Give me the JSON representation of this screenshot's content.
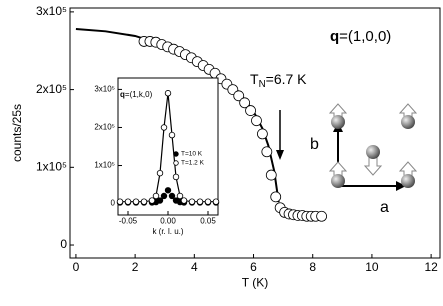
{
  "chart_data": [
    {
      "type": "scatter",
      "x_label": "T (K)",
      "y_label": "counts/25s",
      "annotations": [
        {
          "main": "T",
          "sub": "N",
          "tail": "=6.7 K"
        },
        {
          "main": "q",
          "tail": "=(1,0,0)"
        },
        {
          "main": "b"
        },
        {
          "main": "a"
        }
      ],
      "xlim": [
        -0.2,
        12.3
      ],
      "ylim": [
        -16700,
        305000
      ],
      "xticks": [
        0,
        2,
        4,
        6,
        8,
        10,
        12
      ],
      "yticks": [
        0,
        {
          "value": 100000,
          "label": "1x10⁵"
        },
        {
          "value": 200000,
          "label": "2x10⁵"
        },
        {
          "value": 300000,
          "label": "3x10⁵"
        }
      ],
      "series": [
        {
          "style": "line",
          "color": "#000000",
          "x": [
            0,
            1,
            2,
            3,
            4,
            5,
            5.5,
            6,
            6.3,
            6.5,
            6.7,
            6.85
          ],
          "values": [
            278000,
            275000,
            269000,
            257000,
            240000,
            215000,
            197000,
            172000,
            150000,
            128000,
            95000,
            55000
          ]
        },
        {
          "style": "open-circle",
          "color": "#000000",
          "x": [
            2.3,
            2.5,
            2.7,
            2.9,
            3.1,
            3.3,
            3.5,
            3.7,
            3.9,
            4.1,
            4.3,
            4.5,
            4.7,
            4.9,
            5.1,
            5.3,
            5.5,
            5.7,
            5.9,
            6.1,
            6.3,
            6.45,
            6.6,
            6.75,
            6.9,
            7.05,
            7.2,
            7.35,
            7.5,
            7.65,
            7.8,
            7.95,
            8.1,
            8.3
          ],
          "values": [
            262000,
            262000,
            261000,
            258000,
            255000,
            252000,
            249000,
            245000,
            241000,
            236000,
            231000,
            226000,
            221000,
            214000,
            207000,
            200000,
            192000,
            183000,
            173000,
            160000,
            143000,
            120000,
            90000,
            62000,
            48000,
            42000,
            40000,
            39000,
            38000,
            38000,
            37000,
            37000,
            37000,
            37000
          ]
        }
      ]
    },
    {
      "type": "scatter",
      "x_label": "k (r. l. u.)",
      "annotations": [
        {
          "main": "q",
          "tail": "=(1,k,0)"
        }
      ],
      "xlim": [
        -0.0625,
        0.0625
      ],
      "ylim": [
        -30000,
        330000
      ],
      "xticks": [
        -0.05,
        {
          "value": 0,
          "label": "0.00"
        },
        0.05
      ],
      "yticks": [
        0,
        {
          "value": 100000,
          "label": "1x10⁵"
        },
        {
          "value": 200000,
          "label": "2x10⁵"
        },
        {
          "value": 300000,
          "label": "3x10⁵"
        }
      ],
      "series": [
        {
          "name": "T=10 K",
          "style": "filled-circle",
          "color": "#000000",
          "x": [
            -0.06,
            -0.05,
            -0.04,
            -0.03,
            -0.02,
            -0.015,
            -0.01,
            -0.005,
            0,
            0.005,
            0.01,
            0.015,
            0.02,
            0.03,
            0.04,
            0.05,
            0.06
          ],
          "values": [
            3000,
            3000,
            3000,
            3000,
            3000,
            4000,
            8000,
            20000,
            35000,
            20000,
            8000,
            4000,
            3000,
            3000,
            3000,
            3000,
            3000
          ]
        },
        {
          "name": "T=1.2 K",
          "style": "open-circle-line",
          "color": "#000000",
          "x": [
            -0.06,
            -0.05,
            -0.04,
            -0.03,
            -0.02,
            -0.015,
            -0.01,
            -0.005,
            0,
            0.005,
            0.01,
            0.015,
            0.02,
            0.03,
            0.04,
            0.05,
            0.06
          ],
          "values": [
            5000,
            5000,
            5000,
            5000,
            8000,
            20000,
            80000,
            200000,
            290000,
            180000,
            70000,
            20000,
            8000,
            5000,
            5000,
            5000,
            5000
          ]
        }
      ]
    }
  ]
}
